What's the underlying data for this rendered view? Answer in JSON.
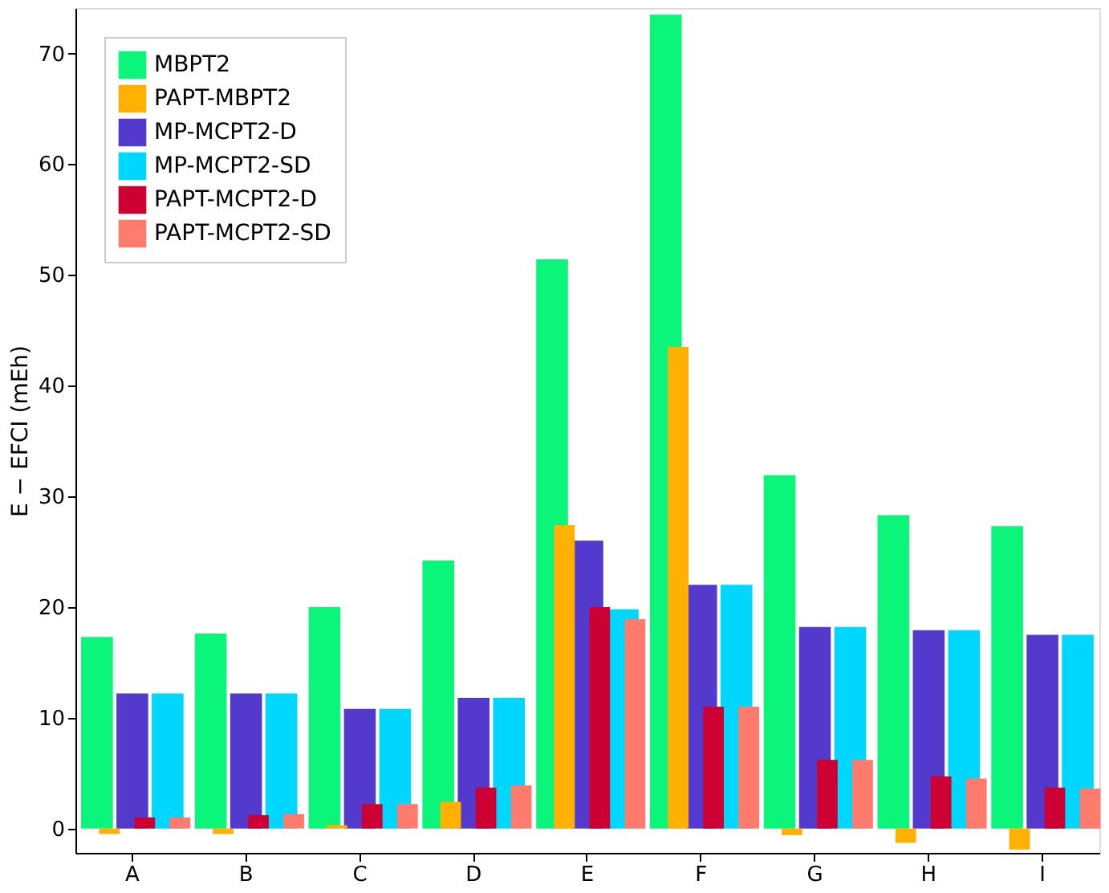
{
  "chart_data": {
    "type": "bar",
    "ylabel": "E − EFCI (mEh)",
    "categories": [
      "A",
      "B",
      "C",
      "D",
      "E",
      "F",
      "G",
      "H",
      "I"
    ],
    "ylim": [
      -2.2,
      74.1
    ],
    "yticks": [
      0,
      10,
      20,
      30,
      40,
      50,
      60,
      70
    ],
    "grid": false,
    "legend": "top left",
    "series": [
      {
        "name": "MBPT2",
        "color": "#0af57a",
        "values": [
          17.3,
          17.6,
          20.0,
          24.2,
          51.4,
          73.5,
          31.9,
          28.3,
          27.3
        ]
      },
      {
        "name": "PAPT-MBPT2",
        "color": "#ffb000",
        "values": [
          -0.5,
          -0.5,
          0.3,
          2.4,
          27.4,
          43.5,
          -0.6,
          -1.3,
          -1.9
        ]
      },
      {
        "name": "MP-MCPT2-D",
        "color": "#5339cc",
        "values": [
          12.2,
          12.2,
          10.8,
          11.8,
          26.0,
          22.0,
          18.2,
          17.9,
          17.5
        ]
      },
      {
        "name": "MP-MCPT2-SD",
        "color": "#00d7ff",
        "values": [
          12.2,
          12.2,
          10.8,
          11.8,
          19.8,
          22.0,
          18.2,
          17.9,
          17.5
        ]
      },
      {
        "name": "PAPT-MCPT2-D",
        "color": "#cc0033",
        "values": [
          1.0,
          1.2,
          2.2,
          3.7,
          20.0,
          11.0,
          6.2,
          4.7,
          3.7
        ]
      },
      {
        "name": "PAPT-MCPT2-SD",
        "color": "#fe7b6d",
        "values": [
          1.0,
          1.3,
          2.2,
          3.9,
          18.9,
          11.0,
          6.2,
          4.5,
          3.6
        ]
      }
    ]
  }
}
